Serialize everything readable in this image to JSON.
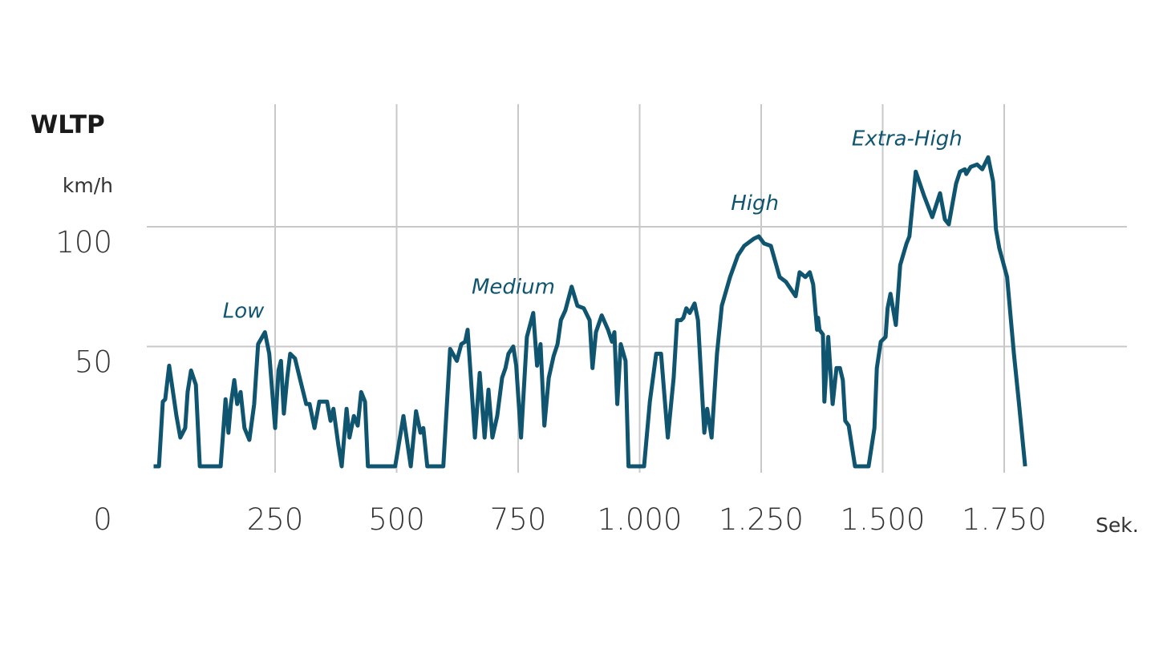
{
  "chart_data": {
    "type": "line",
    "title": "WLTP",
    "ylabel": "km/h",
    "xlabel": "Sek.",
    "xlim": [
      0,
      1800
    ],
    "ylim": [
      0,
      130
    ],
    "grid": true,
    "x_ticks": [
      0,
      250,
      500,
      750,
      1000,
      1250,
      1500,
      1750
    ],
    "x_tick_labels": [
      "0",
      "250",
      "500",
      "750",
      "1.000",
      "1.250",
      "1.500",
      "1.750"
    ],
    "y_ticks": [
      50,
      100
    ],
    "y_tick_labels": [
      "50",
      "100"
    ],
    "annotations": [
      {
        "text": "Low",
        "x": 185,
        "y": 62
      },
      {
        "text": "Medium",
        "x": 740,
        "y": 72
      },
      {
        "text": "High",
        "x": 1237,
        "y": 107
      },
      {
        "text": "Extra-High",
        "x": 1550,
        "y": 134
      }
    ],
    "colors": {
      "line": "#0f5570",
      "annotation": "#0f5570",
      "grid": "#c8c8c8"
    },
    "series": [
      {
        "name": "WLTP",
        "x": [
          0,
          11,
          19,
          24,
          32,
          40,
          47,
          55,
          65,
          70,
          77,
          87,
          95,
          138,
          143,
          148,
          154,
          159,
          166,
          172,
          179,
          187,
          197,
          207,
          215,
          229,
          238,
          250,
          257,
          262,
          268,
          275,
          281,
          291,
          303,
          314,
          321,
          331,
          341,
          351,
          357,
          364,
          370,
          380,
          387,
          397,
          403,
          412,
          420,
          427,
          435,
          441,
          497,
          514,
          529,
          540,
          549,
          555,
          563,
          596,
          610,
          624,
          633,
          641,
          646,
          661,
          671,
          681,
          689,
          697,
          707,
          717,
          724,
          730,
          740,
          746,
          756,
          768,
          781,
          789,
          796,
          804,
          813,
          823,
          831,
          838,
          847,
          860,
          872,
          885,
          897,
          903,
          910,
          922,
          935,
          943,
          948,
          954,
          961,
          971,
          977,
          1009,
          1021,
          1034,
          1044,
          1058,
          1070,
          1077,
          1085,
          1090,
          1096,
          1103,
          1113,
          1120,
          1133,
          1139,
          1148,
          1159,
          1169,
          1186,
          1202,
          1215,
          1235,
          1245,
          1256,
          1270,
          1288,
          1301,
          1321,
          1329,
          1341,
          1350,
          1357,
          1365,
          1367,
          1370,
          1377,
          1380,
          1388,
          1397,
          1405,
          1412,
          1418,
          1423,
          1430,
          1443,
          1471,
          1483,
          1488,
          1496,
          1506,
          1510,
          1516,
          1527,
          1536,
          1549,
          1555,
          1568,
          1585,
          1602,
          1618,
          1628,
          1636,
          1651,
          1659,
          1669,
          1672,
          1681,
          1694,
          1705,
          1717,
          1727,
          1733,
          1740,
          1756,
          1770,
          1780,
          1793
        ],
        "y": [
          0,
          0,
          27,
          28,
          42,
          31,
          21,
          12,
          16,
          31,
          40,
          34,
          0,
          0,
          14,
          28,
          14,
          26,
          36,
          26,
          31,
          16,
          11,
          26,
          51,
          56,
          47,
          16,
          40,
          44,
          22,
          37,
          47,
          45,
          35,
          26,
          26,
          16,
          27,
          27,
          27,
          19,
          24,
          9,
          0,
          24,
          12,
          21,
          17,
          31,
          27,
          0,
          0,
          21,
          0,
          23,
          14,
          16,
          0,
          0,
          49,
          44,
          51,
          52,
          57,
          12,
          39,
          12,
          32,
          12,
          21,
          37,
          41,
          47,
          50,
          42,
          12,
          54,
          64,
          42,
          51,
          17,
          37,
          46,
          51,
          61,
          65,
          75,
          67,
          66,
          61,
          41,
          56,
          63,
          57,
          52,
          56,
          26,
          51,
          44,
          0,
          0,
          27,
          47,
          47,
          12,
          37,
          61,
          61,
          62,
          66,
          64,
          68,
          61,
          14,
          24,
          12,
          47,
          67,
          79,
          88,
          92,
          95,
          96,
          93,
          92,
          79,
          77,
          71,
          81,
          79,
          81,
          76,
          57,
          62,
          57,
          55,
          27,
          54,
          26,
          41,
          41,
          36,
          19,
          17,
          0,
          0,
          16,
          41,
          52,
          54,
          66,
          72,
          59,
          84,
          93,
          96,
          123,
          113,
          104,
          114,
          103,
          101,
          118,
          123,
          124,
          122,
          125,
          126,
          124,
          129,
          119,
          99,
          91,
          79,
          47,
          27,
          0
        ]
      }
    ]
  }
}
